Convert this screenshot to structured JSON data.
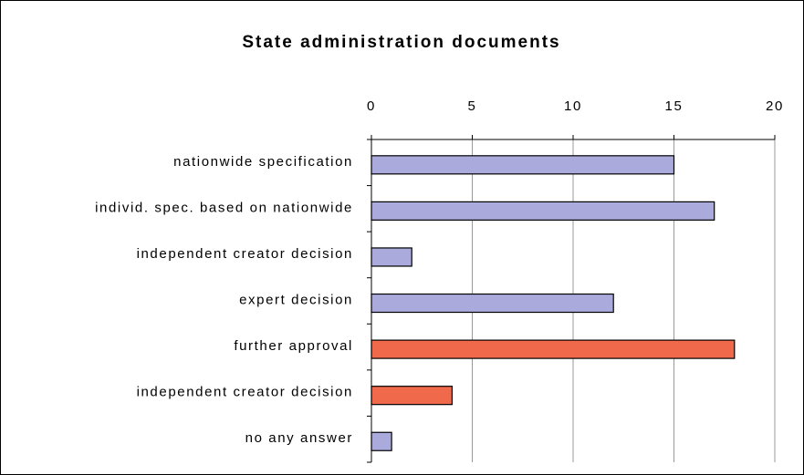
{
  "chart_data": {
    "type": "barh",
    "title": "State administration documents",
    "categories": [
      "nationwide specification",
      "individ. spec. based on nationwide",
      "independent creator decision",
      "expert decision",
      "further approval",
      "independent creator decision",
      "no any answer"
    ],
    "values": [
      15,
      17,
      2,
      12,
      18,
      4,
      1
    ],
    "colors": [
      "#aaaadc",
      "#aaaadc",
      "#aaaadc",
      "#aaaadc",
      "#f0694a",
      "#f0694a",
      "#aaaadc"
    ],
    "xlim": [
      0,
      20
    ],
    "xticks": [
      0,
      5,
      10,
      15,
      20
    ],
    "grid": true
  }
}
